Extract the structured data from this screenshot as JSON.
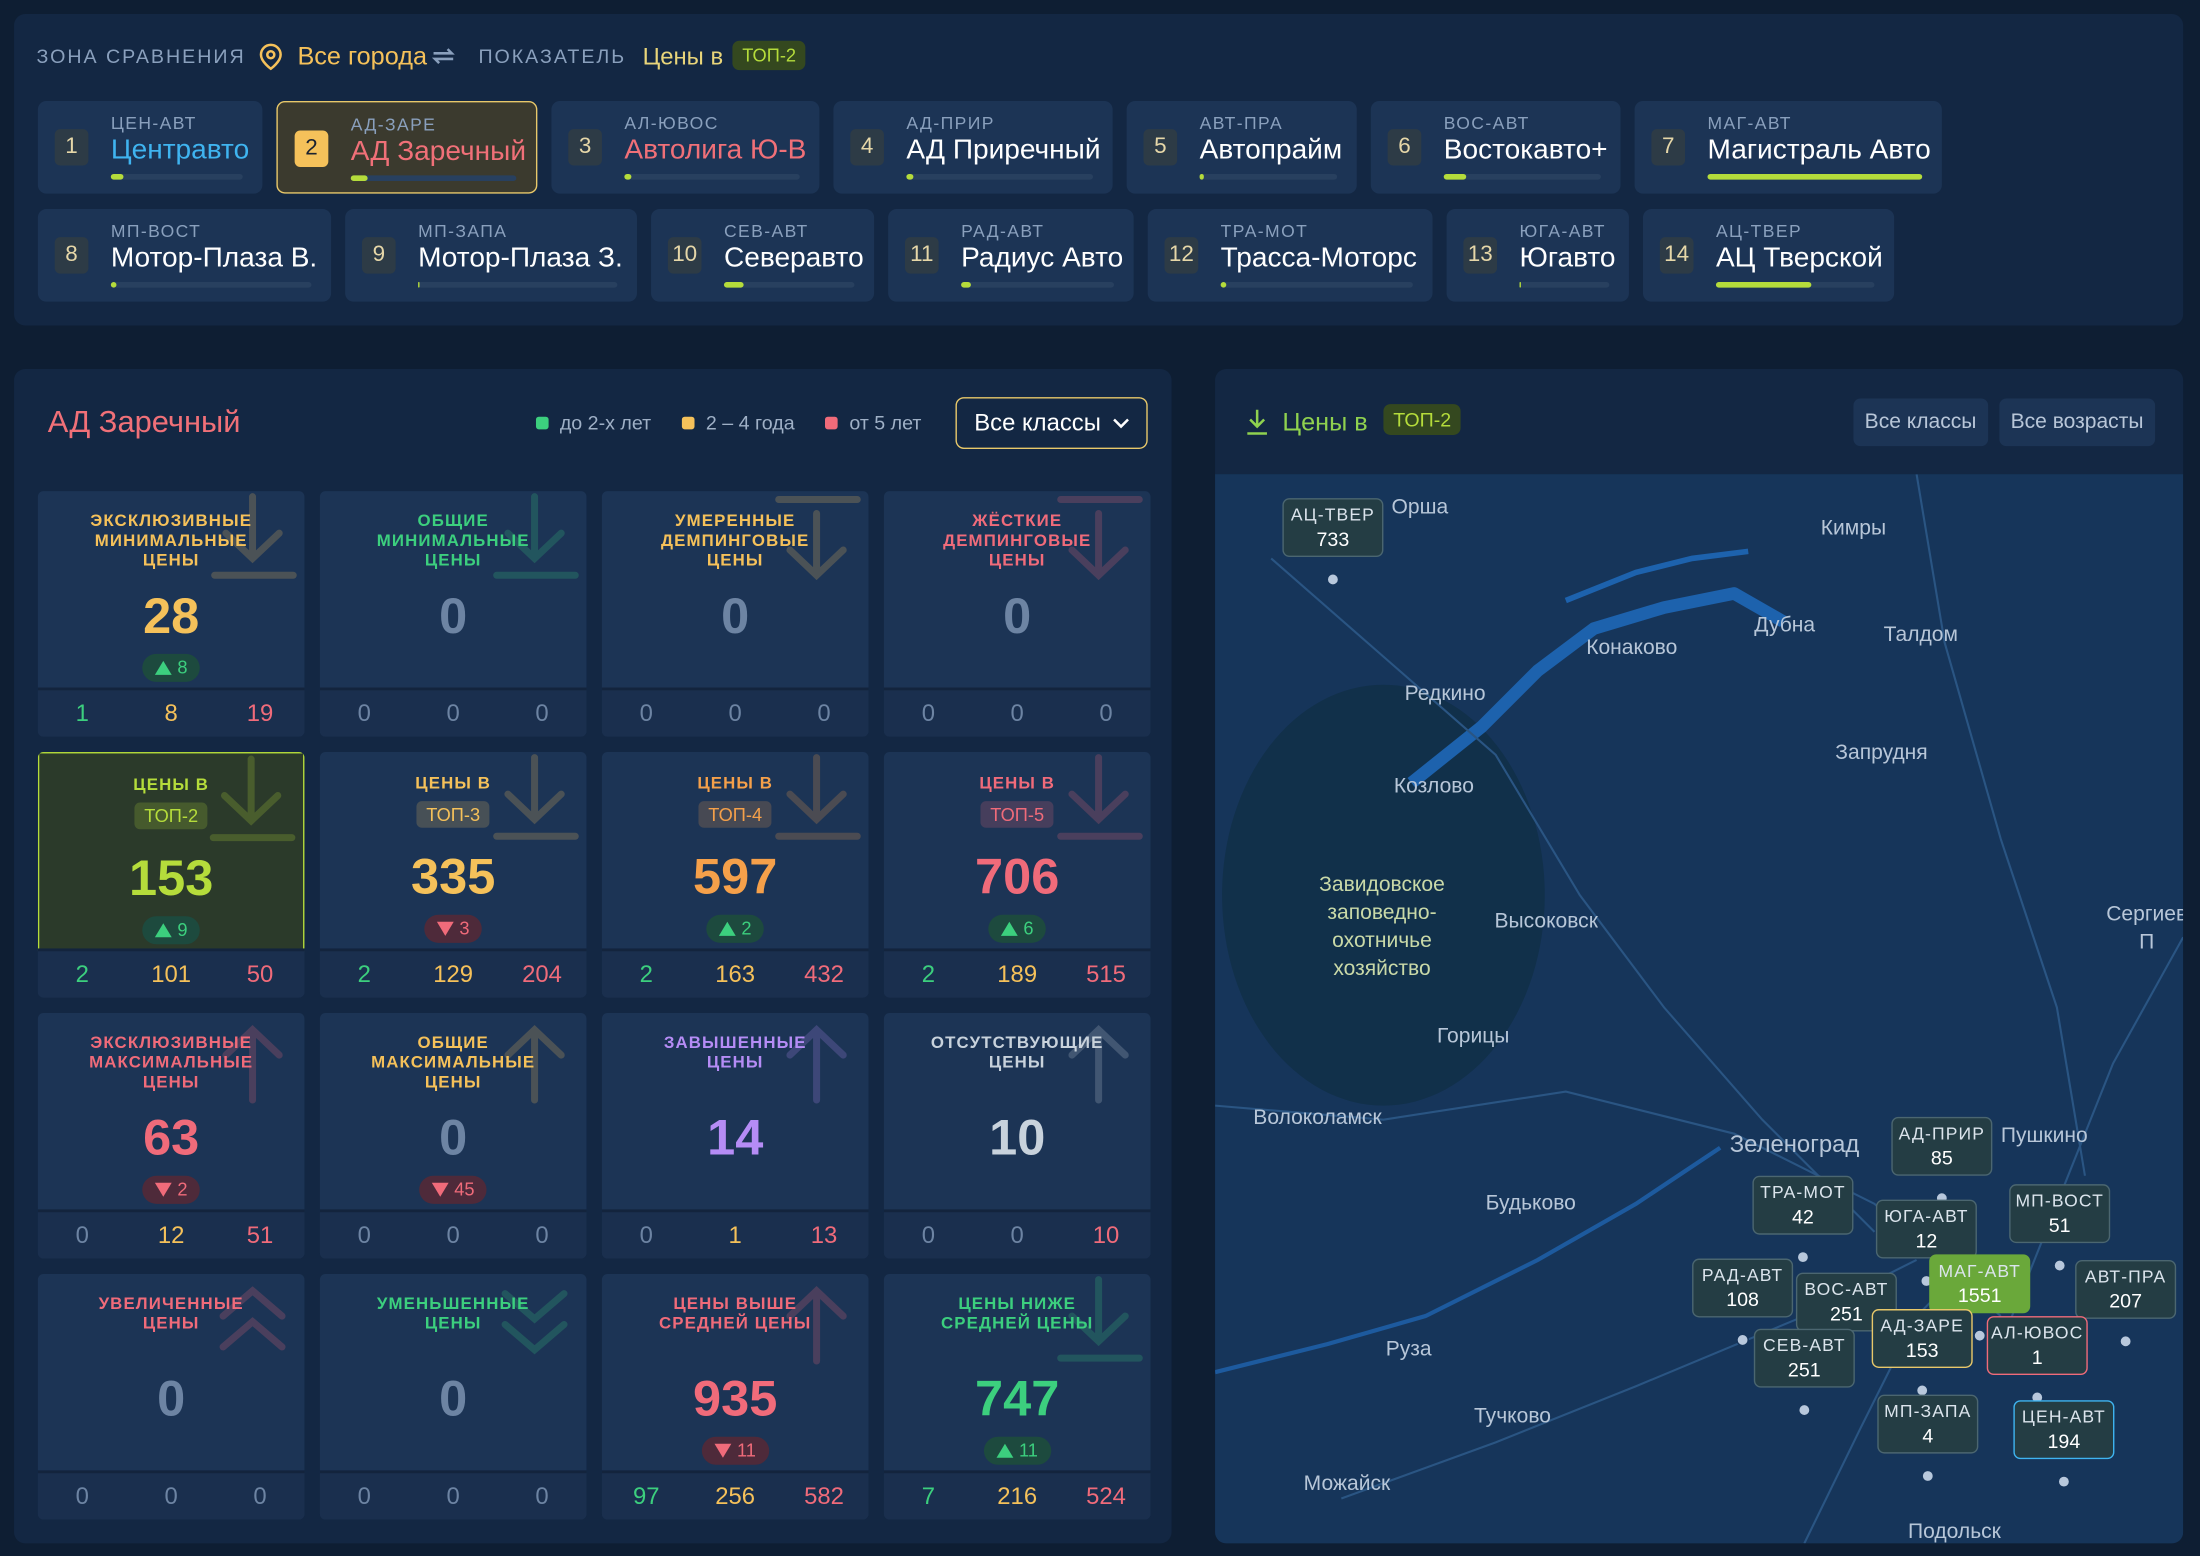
{
  "header": {
    "zone_label": "ЗОНА СРАВНЕНИЯ",
    "city": "Все города",
    "indicator_label": "ПОКАЗАТЕЛЬ",
    "indicator": "Цены в",
    "indicator_badge": "ТОП-2"
  },
  "dealers": [
    {
      "rank": 1,
      "code": "ЦЕН-АВТ",
      "name": "Центравто",
      "share": 10,
      "color": "#3fb4f0"
    },
    {
      "rank": 2,
      "code": "АД-ЗАРЕ",
      "name": "АД Заречный",
      "share": 10,
      "color": "#f07078"
    },
    {
      "rank": 3,
      "code": "АЛ-ЮВОС",
      "name": "Автолига Ю-В",
      "share": 4,
      "color": "#f07078"
    },
    {
      "rank": 4,
      "code": "АД-ПРИР",
      "name": "АД Приречный",
      "share": 4,
      "color": "#ffffff"
    },
    {
      "rank": 5,
      "code": "АВТ-ПРА",
      "name": "Автопрайм",
      "share": 3,
      "color": "#ffffff"
    },
    {
      "rank": 6,
      "code": "ВОС-АВТ",
      "name": "Востокавто+",
      "share": 14,
      "color": "#ffffff"
    },
    {
      "rank": 7,
      "code": "МАГ-АВТ",
      "name": "Магистраль Авто",
      "share": 100,
      "color": "#ffffff"
    },
    {
      "rank": 8,
      "code": "МП-ВОСТ",
      "name": "Мотор-Плаза В.",
      "share": 3,
      "color": "#ffffff"
    },
    {
      "rank": 9,
      "code": "МП-ЗАПА",
      "name": "Мотор-Плаза З.",
      "share": 1,
      "color": "#ffffff"
    },
    {
      "rank": 10,
      "code": "СЕВ-АВТ",
      "name": "Северавто",
      "share": 15,
      "color": "#ffffff"
    },
    {
      "rank": 11,
      "code": "РАД-АВТ",
      "name": "Радиус Авто",
      "share": 6,
      "color": "#ffffff"
    },
    {
      "rank": 12,
      "code": "ТРА-МОТ",
      "name": "Трасса-Моторс",
      "share": 3,
      "color": "#ffffff"
    },
    {
      "rank": 13,
      "code": "ЮГА-АВТ",
      "name": "Югавто",
      "share": 1,
      "color": "#ffffff"
    },
    {
      "rank": 14,
      "code": "АЦ-ТВЕР",
      "name": "АЦ Тверской",
      "share": 60,
      "color": "#ffffff"
    }
  ],
  "selected_dealer": 1,
  "summary": {
    "title": "АД Заречный",
    "legend": [
      {
        "label": "до 2-х лет",
        "color": "#3ccf7e"
      },
      {
        "label": "2 – 4 года",
        "color": "#f5c15a"
      },
      {
        "label": "от 5 лет",
        "color": "#f06b7a"
      }
    ],
    "filter": "Все классы",
    "tiles": [
      {
        "label": "ЭКСКЛЮЗИВНЫЕ\nМИНИМАЛЬНЫЕ\nЦЕНЫ",
        "value": 28,
        "color": "#f5c15a",
        "delta": {
          "dir": "up",
          "value": 8
        },
        "breakdown": [
          1,
          8,
          19
        ]
      },
      {
        "label": "ОБЩИЕ\nМИНИМАЛЬНЫЕ\nЦЕНЫ",
        "value": 0,
        "color": "#3ccf7e",
        "breakdown": [
          0,
          0,
          0
        ]
      },
      {
        "label": "УМЕРЕННЫЕ\nДЕМПИНГОВЫЕ\nЦЕНЫ",
        "value": 0,
        "color": "#f5c15a",
        "breakdown": [
          0,
          0,
          0
        ]
      },
      {
        "label": "ЖЁСТКИЕ\nДЕМПИНГОВЫЕ\nЦЕНЫ",
        "value": 0,
        "color": "#f06b7a",
        "breakdown": [
          0,
          0,
          0
        ]
      },
      {
        "label": "ЦЕНЫ В",
        "badge": "ТОП-2",
        "value": 153,
        "color": "#b5dc3b",
        "selected": true,
        "delta": {
          "dir": "up",
          "value": 9
        },
        "breakdown": [
          2,
          101,
          50
        ]
      },
      {
        "label": "ЦЕНЫ В",
        "badge": "ТОП-3",
        "value": 335,
        "color": "#f5c15a",
        "delta": {
          "dir": "down",
          "value": 3
        },
        "breakdown": [
          2,
          129,
          204
        ]
      },
      {
        "label": "ЦЕНЫ В",
        "badge": "ТОП-4",
        "value": 597,
        "color": "#f5a04a",
        "delta": {
          "dir": "up",
          "value": 2
        },
        "breakdown": [
          2,
          163,
          432
        ]
      },
      {
        "label": "ЦЕНЫ В",
        "badge": "ТОП-5",
        "value": 706,
        "color": "#f06b7a",
        "delta": {
          "dir": "up",
          "value": 6
        },
        "breakdown": [
          2,
          189,
          515
        ]
      },
      {
        "label": "ЭКСКЛЮЗИВНЫЕ\nМАКСИМАЛЬНЫЕ\nЦЕНЫ",
        "value": 63,
        "color": "#f06b7a",
        "delta": {
          "dir": "down",
          "value": 2
        },
        "breakdown": [
          0,
          12,
          51
        ]
      },
      {
        "label": "ОБЩИЕ\nМАКСИМАЛЬНЫЕ\nЦЕНЫ",
        "value": 0,
        "color": "#f5c15a",
        "delta": {
          "dir": "down",
          "value": 45
        },
        "breakdown": [
          0,
          0,
          0
        ]
      },
      {
        "label": "ЗАВЫШЕННЫЕ\nЦЕНЫ",
        "value": 14,
        "color": "#b58cf5",
        "breakdown": [
          0,
          1,
          13
        ]
      },
      {
        "label": "ОТСУТСТВУЮЩИЕ\nЦЕНЫ",
        "value": 10,
        "color": "#c8d2dc",
        "breakdown": [
          0,
          0,
          10
        ]
      },
      {
        "label": "УВЕЛИЧЕННЫЕ\nЦЕНЫ",
        "value": 0,
        "color": "#f06b7a",
        "breakdown": [
          0,
          0,
          0
        ]
      },
      {
        "label": "УМЕНЬШЕННЫЕ\nЦЕНЫ",
        "value": 0,
        "color": "#3ccf7e",
        "breakdown": [
          0,
          0,
          0
        ]
      },
      {
        "label": "ЦЕНЫ ВЫШЕ\nСРЕДНЕЙ ЦЕНЫ",
        "value": 935,
        "color": "#f06b7a",
        "delta": {
          "dir": "down",
          "value": 11
        },
        "breakdown": [
          97,
          256,
          582
        ]
      },
      {
        "label": "ЦЕНЫ НИЖЕ\nСРЕДНЕЙ ЦЕНЫ",
        "value": 747,
        "color": "#3ccf7e",
        "delta": {
          "dir": "up",
          "value": 11
        },
        "breakdown": [
          7,
          216,
          524
        ]
      }
    ]
  },
  "map": {
    "title": "Цены в",
    "badge": "ТОП-2",
    "filters": [
      "Все классы",
      "Все возрасты"
    ],
    "places": [
      "Орша",
      "Кимры",
      "Дубна",
      "Талдом",
      "Конаково",
      "Редкино",
      "Запрудня",
      "Козлово",
      "Завидовское\nзаповедно-\nохотничье\nхозяйство",
      "Высоковск",
      "Сергиев П",
      "Горицы",
      "Волоколамск",
      "Зеленоград",
      "Пушкино",
      "Будьково",
      "Руза",
      "Тучково",
      "Можайск",
      "Подольск"
    ],
    "pins": [
      {
        "code": "АЦ-ТВЕР",
        "value": 733
      },
      {
        "code": "АД-ПРИР",
        "value": 85
      },
      {
        "code": "ТРА-МОТ",
        "value": 42
      },
      {
        "code": "ЮГА-АВТ",
        "value": 12
      },
      {
        "code": "МП-ВОСТ",
        "value": 51
      },
      {
        "code": "РАД-АВТ",
        "value": 108
      },
      {
        "code": "ВОС-АВТ",
        "value": 251
      },
      {
        "code": "МАГ-АВТ",
        "value": 1551,
        "color": "#6aa83a"
      },
      {
        "code": "АВТ-ПРА",
        "value": 207
      },
      {
        "code": "АД-ЗАРЕ",
        "value": 153,
        "color": "#e8c86a"
      },
      {
        "code": "АЛ-ЮВОС",
        "value": 1,
        "color": "#f06b7a"
      },
      {
        "code": "СЕВ-АВТ",
        "value": 251
      },
      {
        "code": "МП-ЗАПА",
        "value": 4
      },
      {
        "code": "ЦЕН-АВТ",
        "value": 194,
        "color": "#3fb4f0"
      }
    ]
  }
}
